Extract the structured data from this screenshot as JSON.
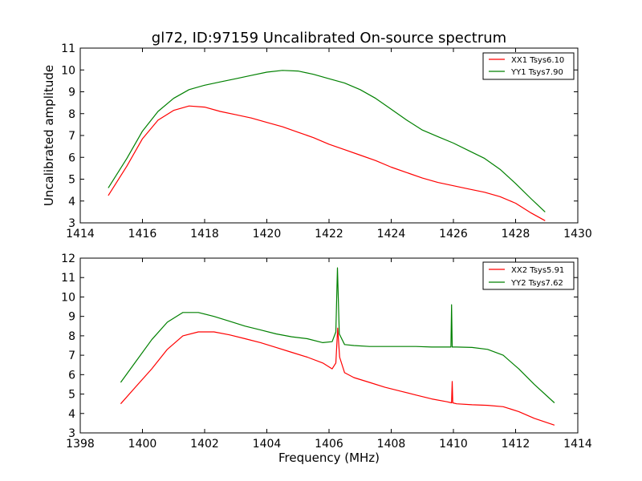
{
  "chart_data": [
    {
      "type": "line",
      "title": "gl72, ID:97159 Uncalibrated On-source spectrum",
      "xlabel": "",
      "ylabel": "Uncalibrated amplitude",
      "xlim": [
        1414,
        1430
      ],
      "ylim": [
        3,
        11
      ],
      "xticks": [
        1414,
        1416,
        1418,
        1420,
        1422,
        1424,
        1426,
        1428,
        1430
      ],
      "yticks": [
        3,
        4,
        5,
        6,
        7,
        8,
        9,
        10,
        11
      ],
      "grid": false,
      "legend_position": "top-right",
      "series": [
        {
          "name": "XX1 Tsys6.10",
          "color": "#ff0000",
          "x": [
            1414.9,
            1415.5,
            1416.0,
            1416.5,
            1417.0,
            1417.5,
            1418.0,
            1418.5,
            1419.0,
            1419.5,
            1420.0,
            1420.5,
            1421.0,
            1421.5,
            1422.0,
            1422.5,
            1423.0,
            1423.5,
            1424.0,
            1424.5,
            1425.0,
            1425.5,
            1426.0,
            1426.5,
            1427.0,
            1427.5,
            1428.0,
            1428.5,
            1428.95
          ],
          "y": [
            4.25,
            5.6,
            6.85,
            7.7,
            8.15,
            8.35,
            8.3,
            8.1,
            7.95,
            7.8,
            7.6,
            7.4,
            7.15,
            6.9,
            6.6,
            6.35,
            6.1,
            5.85,
            5.55,
            5.3,
            5.05,
            4.85,
            4.7,
            4.55,
            4.4,
            4.2,
            3.9,
            3.45,
            3.1
          ]
        },
        {
          "name": "YY1 Tsys7.90",
          "color": "#008000",
          "x": [
            1414.9,
            1415.5,
            1416.0,
            1416.5,
            1417.0,
            1417.5,
            1418.0,
            1418.5,
            1419.0,
            1419.5,
            1420.0,
            1420.5,
            1421.0,
            1421.5,
            1422.0,
            1422.5,
            1423.0,
            1423.5,
            1424.0,
            1424.5,
            1425.0,
            1425.5,
            1426.0,
            1426.5,
            1427.0,
            1427.5,
            1428.0,
            1428.5,
            1428.95
          ],
          "y": [
            4.6,
            5.95,
            7.2,
            8.1,
            8.7,
            9.1,
            9.3,
            9.45,
            9.6,
            9.75,
            9.9,
            9.98,
            9.95,
            9.8,
            9.6,
            9.4,
            9.1,
            8.7,
            8.2,
            7.7,
            7.25,
            6.95,
            6.65,
            6.3,
            5.95,
            5.45,
            4.8,
            4.1,
            3.5
          ]
        }
      ]
    },
    {
      "type": "line",
      "title": "",
      "xlabel": "Frequency (MHz)",
      "ylabel": "",
      "xlim": [
        1398,
        1414
      ],
      "ylim": [
        3,
        12
      ],
      "xticks": [
        1398,
        1400,
        1402,
        1404,
        1406,
        1408,
        1410,
        1412,
        1414
      ],
      "yticks": [
        3,
        4,
        5,
        6,
        7,
        8,
        9,
        10,
        11,
        12
      ],
      "grid": false,
      "legend_position": "top-right",
      "series": [
        {
          "name": "XX2 Tsys5.91",
          "color": "#ff0000",
          "x": [
            1399.3,
            1399.8,
            1400.3,
            1400.8,
            1401.3,
            1401.8,
            1402.3,
            1402.8,
            1403.3,
            1403.8,
            1404.3,
            1404.8,
            1405.3,
            1405.8,
            1406.1,
            1406.22,
            1406.28,
            1406.34,
            1406.5,
            1406.8,
            1407.3,
            1407.8,
            1408.3,
            1408.8,
            1409.3,
            1409.8,
            1409.94,
            1409.96,
            1409.98,
            1410.1,
            1410.6,
            1411.1,
            1411.6,
            1412.1,
            1412.6,
            1413.25
          ],
          "y": [
            4.5,
            5.4,
            6.3,
            7.3,
            8.0,
            8.2,
            8.2,
            8.05,
            7.85,
            7.65,
            7.4,
            7.15,
            6.9,
            6.6,
            6.3,
            6.6,
            8.4,
            6.9,
            6.1,
            5.85,
            5.6,
            5.35,
            5.15,
            4.95,
            4.75,
            4.6,
            4.55,
            5.65,
            4.55,
            4.5,
            4.45,
            4.42,
            4.35,
            4.1,
            3.75,
            3.4
          ]
        },
        {
          "name": "YY2 Tsys7.62",
          "color": "#008000",
          "x": [
            1399.3,
            1399.8,
            1400.3,
            1400.8,
            1401.3,
            1401.8,
            1402.3,
            1402.8,
            1403.3,
            1403.8,
            1404.3,
            1404.8,
            1405.3,
            1405.8,
            1406.1,
            1406.22,
            1406.27,
            1406.33,
            1406.5,
            1406.8,
            1407.3,
            1407.8,
            1408.3,
            1408.8,
            1409.3,
            1409.8,
            1409.92,
            1409.94,
            1409.96,
            1410.1,
            1410.6,
            1411.1,
            1411.6,
            1412.1,
            1412.6,
            1413.25
          ],
          "y": [
            5.6,
            6.7,
            7.8,
            8.7,
            9.2,
            9.2,
            9.0,
            8.75,
            8.5,
            8.3,
            8.1,
            7.95,
            7.85,
            7.65,
            7.7,
            8.2,
            11.5,
            8.1,
            7.55,
            7.5,
            7.45,
            7.45,
            7.45,
            7.45,
            7.42,
            7.42,
            7.42,
            9.6,
            7.42,
            7.42,
            7.4,
            7.3,
            7.0,
            6.3,
            5.5,
            4.55
          ]
        }
      ]
    }
  ]
}
